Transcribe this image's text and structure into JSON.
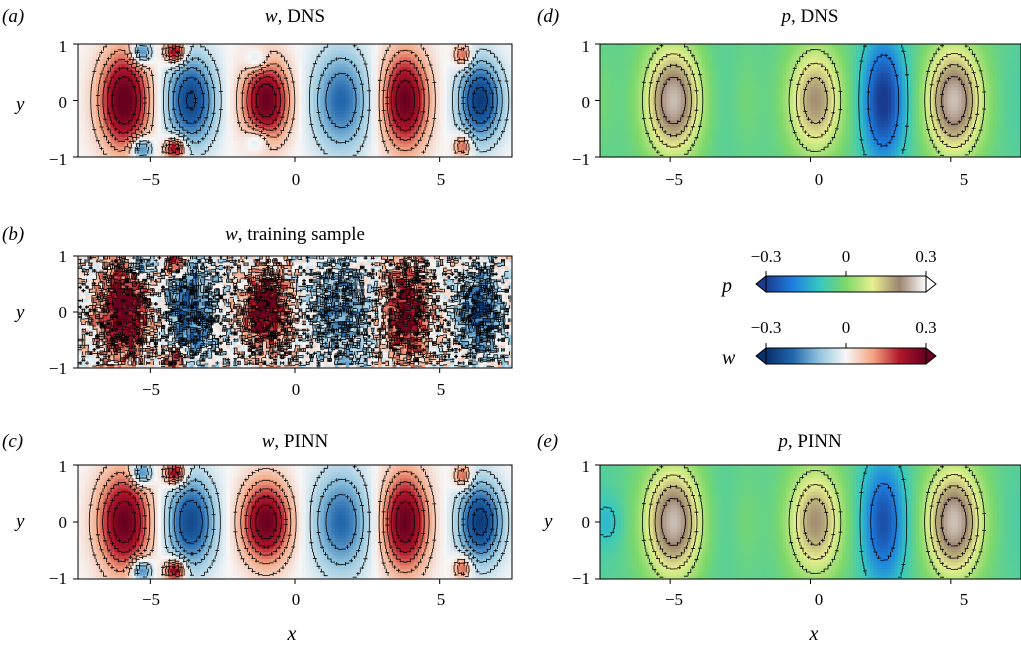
{
  "chart_data": [
    {
      "type": "heatmap",
      "panel_label": "(a)",
      "field": "w",
      "title_suffix": ", DNS",
      "xlabel": "",
      "ylabel": "y",
      "xlim": [
        -7.5,
        7.5
      ],
      "ylim": [
        -1,
        1
      ],
      "xticks": [
        "−5",
        "0",
        "5"
      ],
      "yticks": [
        "1",
        "0",
        "−1"
      ],
      "colormap": "w",
      "features": [
        {
          "x": -5.9,
          "y": 0,
          "amp": 0.32,
          "rx": 0.85,
          "ry": 0.85
        },
        {
          "x": -5.3,
          "y": 0.85,
          "amp": -0.22,
          "rx": 0.35,
          "ry": 0.2
        },
        {
          "x": -5.3,
          "y": -0.85,
          "amp": -0.22,
          "rx": 0.35,
          "ry": 0.2
        },
        {
          "x": -4.15,
          "y": 0.85,
          "amp": 0.28,
          "rx": 0.35,
          "ry": 0.2
        },
        {
          "x": -4.15,
          "y": -0.85,
          "amp": 0.28,
          "rx": 0.35,
          "ry": 0.2
        },
        {
          "x": -3.6,
          "y": 0,
          "amp": -0.26,
          "rx": 0.85,
          "ry": 0.8
        },
        {
          "x": -1.0,
          "y": 0,
          "amp": 0.3,
          "rx": 0.8,
          "ry": 0.7
        },
        {
          "x": -1.3,
          "y": 0.7,
          "amp": -0.1,
          "rx": 0.4,
          "ry": 0.2
        },
        {
          "x": -1.3,
          "y": -0.7,
          "amp": -0.1,
          "rx": 0.4,
          "ry": 0.2
        },
        {
          "x": 1.6,
          "y": 0,
          "amp": -0.2,
          "rx": 1.0,
          "ry": 0.9
        },
        {
          "x": 3.8,
          "y": 0,
          "amp": 0.3,
          "rx": 0.8,
          "ry": 0.85
        },
        {
          "x": 5.8,
          "y": 0.8,
          "amp": 0.18,
          "rx": 0.3,
          "ry": 0.2
        },
        {
          "x": 5.8,
          "y": -0.8,
          "amp": 0.18,
          "rx": 0.3,
          "ry": 0.2
        },
        {
          "x": 6.4,
          "y": 0,
          "amp": -0.28,
          "rx": 0.75,
          "ry": 0.7
        }
      ],
      "noise": 0
    },
    {
      "type": "heatmap",
      "panel_label": "(b)",
      "field": "w",
      "title_suffix": ", training sample",
      "xlabel": "",
      "ylabel": "y",
      "xlim": [
        -7.5,
        7.5
      ],
      "ylim": [
        -1,
        1
      ],
      "xticks": [
        "−5",
        "0",
        "5"
      ],
      "yticks": [
        "1",
        "0",
        "−1"
      ],
      "colormap": "w",
      "features": [
        {
          "x": -5.9,
          "y": 0,
          "amp": 0.3,
          "rx": 0.85,
          "ry": 0.85
        },
        {
          "x": -5.3,
          "y": 0.85,
          "amp": -0.2,
          "rx": 0.35,
          "ry": 0.2
        },
        {
          "x": -4.15,
          "y": 0.85,
          "amp": 0.25,
          "rx": 0.35,
          "ry": 0.2
        },
        {
          "x": -4.15,
          "y": -0.85,
          "amp": 0.25,
          "rx": 0.35,
          "ry": 0.2
        },
        {
          "x": -3.6,
          "y": 0,
          "amp": -0.22,
          "rx": 0.85,
          "ry": 0.8
        },
        {
          "x": -1.0,
          "y": 0,
          "amp": 0.28,
          "rx": 0.8,
          "ry": 0.7
        },
        {
          "x": 1.6,
          "y": 0,
          "amp": -0.16,
          "rx": 1.0,
          "ry": 0.9
        },
        {
          "x": 3.8,
          "y": 0,
          "amp": 0.26,
          "rx": 0.8,
          "ry": 0.85
        },
        {
          "x": 6.4,
          "y": 0,
          "amp": -0.24,
          "rx": 0.75,
          "ry": 0.7
        }
      ],
      "noise": 0.09
    },
    {
      "type": "heatmap",
      "panel_label": "(c)",
      "field": "w",
      "title_suffix": ", PINN",
      "xlabel": "x",
      "ylabel": "y",
      "xlim": [
        -7.5,
        7.5
      ],
      "ylim": [
        -1,
        1
      ],
      "xticks": [
        "−5",
        "0",
        "5"
      ],
      "yticks": [
        "1",
        "0",
        "−1"
      ],
      "colormap": "w",
      "features": [
        {
          "x": -5.9,
          "y": 0,
          "amp": 0.3,
          "rx": 0.9,
          "ry": 0.85
        },
        {
          "x": -5.3,
          "y": 0.85,
          "amp": -0.22,
          "rx": 0.35,
          "ry": 0.2
        },
        {
          "x": -5.3,
          "y": -0.85,
          "amp": -0.22,
          "rx": 0.35,
          "ry": 0.2
        },
        {
          "x": -4.15,
          "y": 0.85,
          "amp": 0.28,
          "rx": 0.35,
          "ry": 0.2
        },
        {
          "x": -4.15,
          "y": -0.85,
          "amp": 0.28,
          "rx": 0.35,
          "ry": 0.2
        },
        {
          "x": -3.6,
          "y": 0,
          "amp": -0.25,
          "rx": 0.85,
          "ry": 0.8
        },
        {
          "x": -1.0,
          "y": 0,
          "amp": 0.3,
          "rx": 0.85,
          "ry": 0.7
        },
        {
          "x": 1.6,
          "y": 0,
          "amp": -0.2,
          "rx": 1.0,
          "ry": 0.9
        },
        {
          "x": 3.8,
          "y": 0,
          "amp": 0.3,
          "rx": 0.8,
          "ry": 0.85
        },
        {
          "x": 5.8,
          "y": 0.8,
          "amp": 0.18,
          "rx": 0.3,
          "ry": 0.2
        },
        {
          "x": 5.8,
          "y": -0.8,
          "amp": 0.18,
          "rx": 0.3,
          "ry": 0.2
        },
        {
          "x": 6.4,
          "y": 0,
          "amp": -0.28,
          "rx": 0.75,
          "ry": 0.7
        }
      ],
      "noise": 0
    },
    {
      "type": "heatmap",
      "panel_label": "(d)",
      "field": "p",
      "title_suffix": ", DNS",
      "xlabel": "",
      "ylabel": "",
      "xlim": [
        -7.5,
        7.5
      ],
      "ylim": [
        -1,
        1
      ],
      "xticks": [
        "−5",
        "0",
        "5"
      ],
      "yticks": [
        "1",
        "0",
        "−1"
      ],
      "colormap": "p",
      "features": [
        {
          "x": -4.85,
          "y": 0,
          "amp": 0.26,
          "rx": 1.0,
          "ry": 0.95
        },
        {
          "x": 0.2,
          "y": 0,
          "amp": 0.2,
          "rx": 0.95,
          "ry": 0.9
        },
        {
          "x": 2.6,
          "y": 0,
          "amp": -0.24,
          "rx": 0.75,
          "ry": 1.1
        },
        {
          "x": 5.1,
          "y": 0,
          "amp": 0.26,
          "rx": 1.0,
          "ry": 0.95
        },
        {
          "x": -2.3,
          "y": 0,
          "amp": 0.05,
          "rx": 0.6,
          "ry": 1.0
        },
        {
          "x": -7.5,
          "y": 0,
          "amp": 0.05,
          "rx": 0.6,
          "ry": 1.0
        }
      ],
      "base": -0.04,
      "noise": 0
    },
    {
      "type": "heatmap",
      "panel_label": "(e)",
      "field": "p",
      "title_suffix": ", PINN",
      "xlabel": "x",
      "ylabel": "y",
      "xlim": [
        -7.5,
        7.5
      ],
      "ylim": [
        -1,
        1
      ],
      "xticks": [
        "−5",
        "0",
        "5"
      ],
      "yticks": [
        "1",
        "0",
        "−1"
      ],
      "colormap": "p",
      "features": [
        {
          "x": -4.85,
          "y": 0,
          "amp": 0.26,
          "rx": 1.0,
          "ry": 0.95
        },
        {
          "x": 0.2,
          "y": 0,
          "amp": 0.2,
          "rx": 0.95,
          "ry": 0.9
        },
        {
          "x": 2.6,
          "y": 0,
          "amp": -0.2,
          "rx": 0.75,
          "ry": 1.1
        },
        {
          "x": 5.1,
          "y": 0,
          "amp": 0.26,
          "rx": 1.0,
          "ry": 0.95
        },
        {
          "x": -2.3,
          "y": 0,
          "amp": 0.05,
          "rx": 0.6,
          "ry": 1.0
        },
        {
          "x": -7.2,
          "y": 0,
          "amp": -0.06,
          "rx": 0.5,
          "ry": 0.4
        }
      ],
      "base": -0.04,
      "noise": 0
    }
  ],
  "colorbars": [
    {
      "field": "p",
      "label": "p",
      "ticks": [
        "−0.3",
        "0",
        "0.3"
      ],
      "range": [
        -0.3,
        0.3
      ],
      "stops": [
        "#1a3b8f",
        "#1e7fe0",
        "#35c7c2",
        "#7ed86a",
        "#e9ef8f",
        "#9c8470",
        "#ffffff"
      ]
    },
    {
      "field": "w",
      "label": "w",
      "ticks": [
        "−0.3",
        "0",
        "0.3"
      ],
      "range": [
        -0.3,
        0.3
      ],
      "stops": [
        "#08306b",
        "#2166ac",
        "#92c5de",
        "#f7f7f7",
        "#f4a582",
        "#b2182b",
        "#67001f"
      ]
    }
  ]
}
